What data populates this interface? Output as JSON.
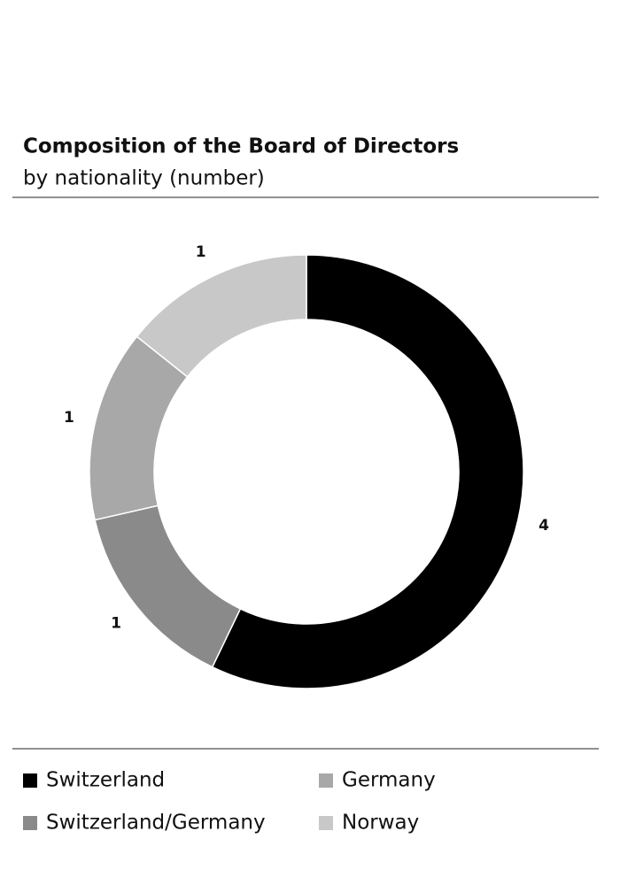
{
  "chart_data": {
    "type": "pie",
    "title": "Composition of the Board of Directors",
    "subtitle": "by nationality (number)",
    "categories": [
      "Switzerland",
      "Switzerland/Germany",
      "Germany",
      "Norway"
    ],
    "values": [
      4,
      1,
      1,
      1
    ],
    "colors": [
      "#000000",
      "#8a8a8a",
      "#a8a8a8",
      "#c8c8c8"
    ],
    "donut": true
  }
}
